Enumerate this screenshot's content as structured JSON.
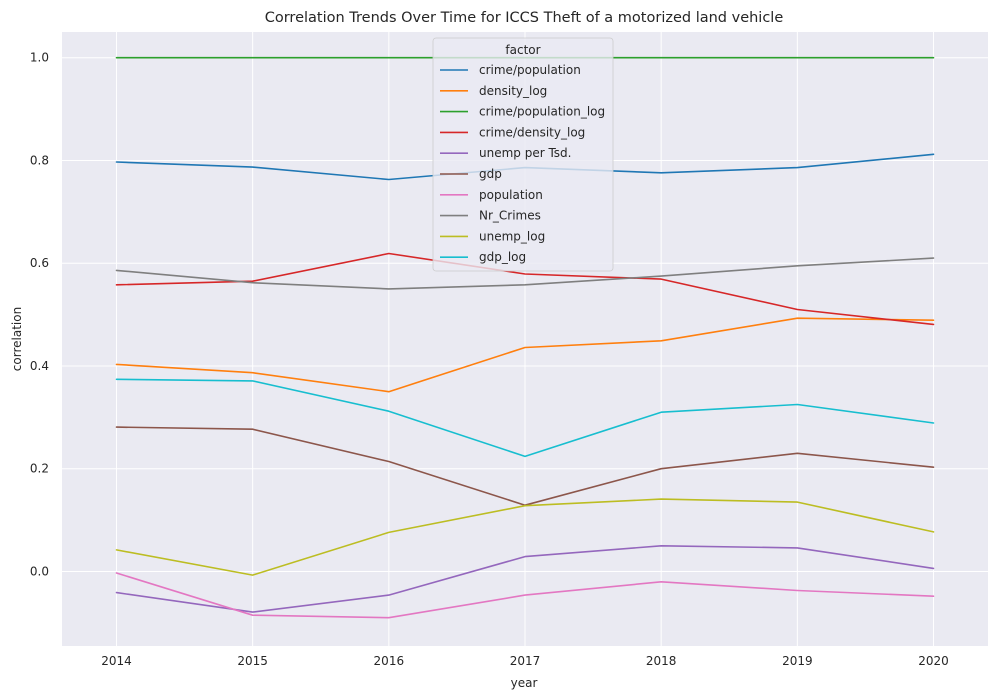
{
  "chart_data": {
    "type": "line",
    "title": "Correlation Trends Over Time for ICCS Theft of a motorized land vehicle",
    "xlabel": "year",
    "ylabel": "correlation",
    "x": [
      2014,
      2015,
      2016,
      2017,
      2018,
      2019,
      2020
    ],
    "xlim": [
      2013.6,
      2020.4
    ],
    "ylim": [
      -0.145,
      1.05
    ],
    "yticks": [
      0.0,
      0.2,
      0.4,
      0.6,
      0.8,
      1.0
    ],
    "ytick_labels": [
      "0.0",
      "0.2",
      "0.4",
      "0.6",
      "0.8",
      "1.0"
    ],
    "xtick_labels": [
      "2014",
      "2015",
      "2016",
      "2017",
      "2018",
      "2019",
      "2020"
    ],
    "grid": true,
    "legend": {
      "title": "factor",
      "placement": "upper center"
    },
    "series": [
      {
        "name": "crime/population",
        "color": "#1f77b4",
        "values": [
          0.797,
          0.787,
          0.763,
          0.786,
          0.776,
          0.786,
          0.812
        ]
      },
      {
        "name": "density_log",
        "color": "#ff7f0e",
        "values": [
          0.403,
          0.387,
          0.35,
          0.436,
          0.449,
          0.493,
          0.489
        ]
      },
      {
        "name": "crime/population_log",
        "color": "#2ca02c",
        "values": [
          1.0,
          1.0,
          1.0,
          1.0,
          1.0,
          1.0,
          1.0
        ]
      },
      {
        "name": "crime/density_log",
        "color": "#d62728",
        "values": [
          0.558,
          0.565,
          0.619,
          0.579,
          0.569,
          0.51,
          0.481
        ]
      },
      {
        "name": "unemp per Tsd.",
        "color": "#9467bd",
        "values": [
          -0.041,
          -0.079,
          -0.046,
          0.029,
          0.05,
          0.046,
          0.006
        ]
      },
      {
        "name": "gdp",
        "color": "#8c564b",
        "values": [
          0.281,
          0.277,
          0.214,
          0.129,
          0.2,
          0.23,
          0.203
        ]
      },
      {
        "name": "population",
        "color": "#e377c2",
        "values": [
          -0.003,
          -0.085,
          -0.09,
          -0.046,
          -0.02,
          -0.037,
          -0.048
        ]
      },
      {
        "name": "Nr_Crimes",
        "color": "#7f7f7f",
        "values": [
          0.586,
          0.562,
          0.55,
          0.558,
          0.575,
          0.595,
          0.61
        ]
      },
      {
        "name": "unemp_log",
        "color": "#bcbd22",
        "values": [
          0.042,
          -0.007,
          0.076,
          0.128,
          0.141,
          0.135,
          0.077
        ]
      },
      {
        "name": "gdp_log",
        "color": "#17becf",
        "values": [
          0.374,
          0.371,
          0.312,
          0.224,
          0.31,
          0.325,
          0.289
        ]
      }
    ]
  }
}
